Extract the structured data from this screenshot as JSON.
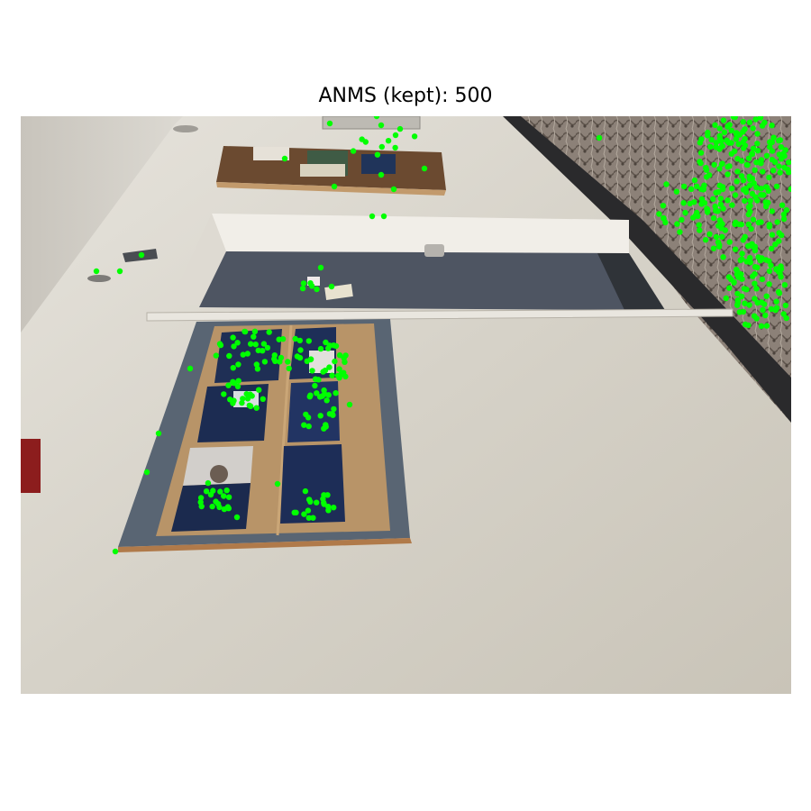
{
  "title": "ANMS (kept): 500",
  "image": {
    "description_name": "hallway-photo",
    "keypoint_color": "#00ff00",
    "kept_count": 500
  },
  "colors": {
    "wall": "#d9d5cc",
    "carpet": "#8a7e74",
    "door": "#545b66",
    "board_frame": "#b38a5a",
    "cork": "#b89468",
    "blue_poster": "#1e2e52",
    "trim": "#ebe8e1"
  }
}
